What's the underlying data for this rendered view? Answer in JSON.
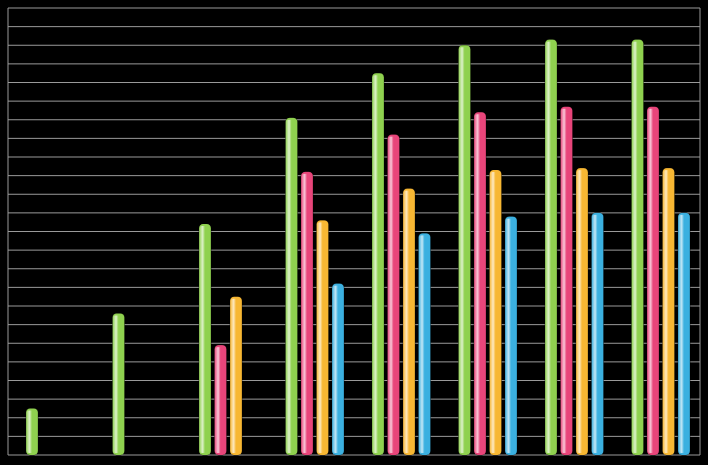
{
  "chart_data": {
    "type": "bar",
    "categories": [
      null,
      null,
      null,
      null,
      null,
      null,
      null,
      null
    ],
    "series": [
      {
        "color": "#8fd14f",
        "values": [
          2.5,
          7.6,
          12.4,
          18.1,
          20.5,
          22.0,
          22.3,
          22.3
        ]
      },
      {
        "color": "#e8457a",
        "values": [
          null,
          null,
          5.9,
          15.2,
          17.2,
          18.4,
          18.7,
          18.7
        ]
      },
      {
        "color": "#f7b733",
        "values": [
          null,
          null,
          8.5,
          12.6,
          14.3,
          15.3,
          15.4,
          15.4
        ]
      },
      {
        "color": "#3bb0e0",
        "values": [
          null,
          null,
          null,
          9.2,
          11.9,
          12.8,
          13.0,
          13.0
        ]
      }
    ],
    "ylim": [
      0,
      24
    ],
    "yticks": [
      0,
      1,
      2,
      3,
      4,
      5,
      6,
      7,
      8,
      9,
      10,
      11,
      12,
      13,
      14,
      15,
      16,
      17,
      18,
      19,
      20,
      21,
      22,
      23,
      24
    ],
    "grid": true
  }
}
